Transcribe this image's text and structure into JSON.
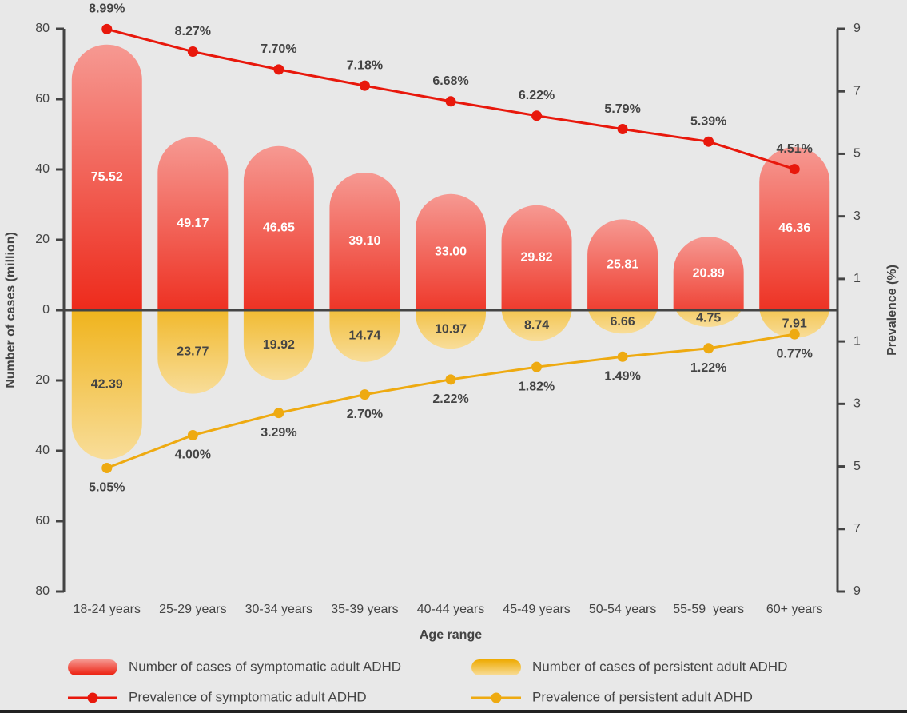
{
  "chart_data": {
    "type": "bar",
    "x_label": "Age range",
    "y_label": "Number of cases (million)",
    "y2_label": "Prevalence (%)",
    "categories": [
      "18-24 years",
      "25-29 years",
      "30-34 years",
      "35-39 years",
      "40-44 years",
      "45-49 years",
      "50-54 years",
      "55-59  years",
      "60+ years"
    ],
    "ylim": [
      -80,
      80
    ],
    "yticks": [
      80,
      60,
      40,
      20,
      0,
      {
        "value": -20,
        "label": "20"
      },
      {
        "value": -40,
        "label": "40"
      },
      {
        "value": -60,
        "label": "60"
      },
      {
        "value": -80,
        "label": "80"
      }
    ],
    "y2lim": [
      -9,
      9
    ],
    "y2ticks": [
      9,
      7,
      5,
      3,
      1,
      {
        "value": -1,
        "label": "1"
      },
      {
        "value": -3,
        "label": "3"
      },
      {
        "value": -5,
        "label": "5"
      },
      {
        "value": -7,
        "label": "7"
      },
      {
        "value": -9,
        "label": "9"
      }
    ],
    "series": [
      {
        "name": "Number of cases of symptomatic adult ADHD",
        "type": "bar",
        "color": "#ec1c0c",
        "values": [
          75.52,
          49.17,
          46.65,
          39.1,
          33.0,
          29.82,
          25.81,
          20.89,
          46.36
        ],
        "value_labels": [
          "75.52",
          "49.17",
          "46.65",
          "39.10",
          "33.00",
          "29.82",
          "25.81",
          "20.89",
          "46.36"
        ]
      },
      {
        "name": "Number of cases of persistent adult ADHD",
        "type": "bar",
        "color": "#eeaa00",
        "values": [
          -42.39,
          -23.77,
          -19.92,
          -14.74,
          -10.97,
          -8.74,
          -6.66,
          -4.75,
          -7.91
        ],
        "value_labels": [
          "42.39",
          "23.77",
          "19.92",
          "14.74",
          "10.97",
          "8.74",
          "6.66",
          "4.75",
          "7.91"
        ]
      },
      {
        "name": "Prevalence of symptomatic adult ADHD",
        "type": "line",
        "axis": "y2",
        "color": "#e8180c",
        "values": [
          8.99,
          8.27,
          7.7,
          7.18,
          6.68,
          6.22,
          5.79,
          5.39,
          4.51
        ],
        "value_labels": [
          "8.99%",
          "8.27%",
          "7.70%",
          "7.18%",
          "6.68%",
          "6.22%",
          "5.79%",
          "5.39%",
          "4.51%"
        ]
      },
      {
        "name": "Prevalence of persistent adult ADHD",
        "type": "line",
        "axis": "y2",
        "color": "#eeaa11",
        "values": [
          -5.05,
          -4.0,
          -3.29,
          -2.7,
          -2.22,
          -1.82,
          -1.49,
          -1.22,
          -0.77
        ],
        "value_labels": [
          "5.05%",
          "4.00%",
          "3.29%",
          "2.70%",
          "2.22%",
          "1.82%",
          "1.49%",
          "1.22%",
          "0.77%"
        ]
      }
    ]
  }
}
